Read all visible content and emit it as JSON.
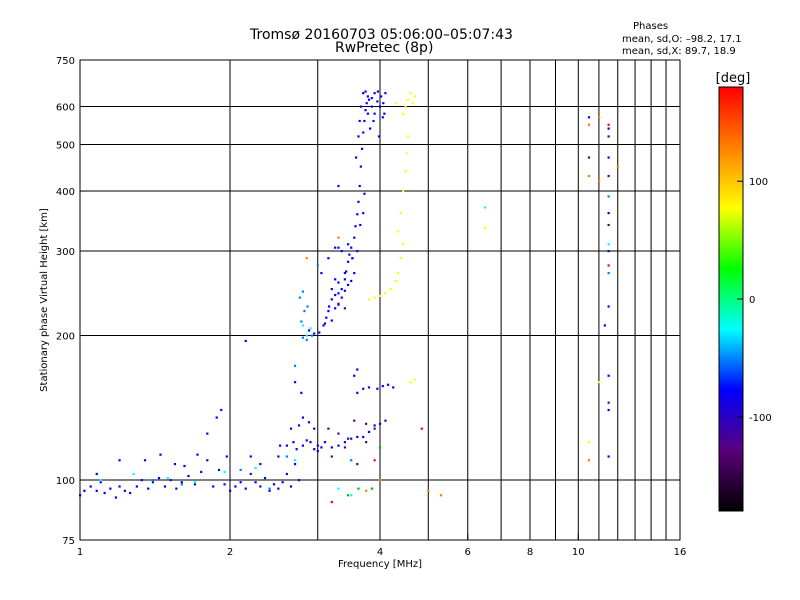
{
  "header": {
    "title_line1": "Tromsø 20160703 05:06:00–05:07:43",
    "title_line2": "RwPretec (8p)"
  },
  "stats": {
    "heading": "Phases",
    "o_line": "mean, sd,O: –98.2, 17.1",
    "x_line": "mean, sd,X:  89.7, 18.9"
  },
  "chart_data": {
    "type": "scatter",
    "title": "Tromsø 20160703 05:06:00–05:07:43",
    "subtitle": "RwPretec (8p)",
    "xlabel": "Frequency [MHz]",
    "ylabel": "Stationary phase Virtual Height [km]",
    "x_scale": "log",
    "y_scale": "log",
    "xlim": [
      1,
      16
    ],
    "ylim": [
      75,
      750
    ],
    "x_ticks": [
      1,
      2,
      4,
      6,
      8,
      10,
      16
    ],
    "x_tick_labels": [
      "1",
      "2",
      "4",
      "6",
      "8",
      "10",
      "16"
    ],
    "x_minor_ticks": [
      3,
      5,
      7,
      9,
      11,
      12,
      13,
      14,
      15
    ],
    "y_ticks": [
      75,
      100,
      200,
      300,
      400,
      500,
      600,
      750
    ],
    "y_tick_labels": [
      "75",
      "100",
      "200",
      "300",
      "400",
      "500",
      "600",
      "750"
    ],
    "grid": true,
    "colorbar": {
      "label": "[deg]",
      "range": [
        -180,
        180
      ],
      "ticks": [
        100,
        0,
        -100
      ],
      "tick_labels": [
        "100",
        "0",
        "-100"
      ],
      "colormap": "rainbow",
      "stops": [
        "#000000",
        "#5a007a",
        "#0000ff",
        "#00ffff",
        "#00ff00",
        "#ffff00",
        "#ff8000",
        "#ff0000"
      ]
    },
    "series": [
      {
        "color_phase": -100,
        "color": "#0000ff",
        "points": [
          [
            1.0,
            93
          ],
          [
            1.02,
            95
          ],
          [
            1.05,
            97
          ],
          [
            1.08,
            95
          ],
          [
            1.1,
            99
          ],
          [
            1.12,
            94
          ],
          [
            1.15,
            96
          ],
          [
            1.18,
            92
          ],
          [
            1.2,
            97
          ],
          [
            1.23,
            95
          ],
          [
            1.26,
            94
          ],
          [
            1.3,
            97
          ],
          [
            1.33,
            100
          ],
          [
            1.37,
            96
          ],
          [
            1.4,
            99
          ],
          [
            1.44,
            101
          ],
          [
            1.48,
            97
          ],
          [
            1.52,
            100
          ],
          [
            1.56,
            96
          ],
          [
            1.6,
            99
          ],
          [
            1.65,
            102
          ],
          [
            1.7,
            98
          ],
          [
            1.75,
            104
          ],
          [
            1.8,
            110
          ],
          [
            1.85,
            97
          ],
          [
            1.9,
            105
          ],
          [
            1.95,
            98
          ],
          [
            2.0,
            95
          ],
          [
            2.05,
            97
          ],
          [
            2.1,
            99
          ],
          [
            2.15,
            96
          ],
          [
            2.2,
            103
          ],
          [
            2.25,
            99
          ],
          [
            2.3,
            97
          ],
          [
            2.35,
            101
          ],
          [
            2.4,
            95
          ],
          [
            2.45,
            98
          ],
          [
            2.5,
            96
          ],
          [
            2.55,
            99
          ],
          [
            2.6,
            103
          ],
          [
            2.65,
            97
          ],
          [
            2.7,
            108
          ],
          [
            2.75,
            100
          ],
          [
            1.08,
            103
          ],
          [
            1.2,
            110
          ],
          [
            1.35,
            110
          ],
          [
            1.45,
            113
          ],
          [
            1.55,
            108
          ],
          [
            1.62,
            107
          ],
          [
            1.72,
            113
          ],
          [
            1.8,
            125
          ],
          [
            1.88,
            135
          ],
          [
            1.92,
            140
          ],
          [
            1.97,
            112
          ],
          [
            2.2,
            112
          ],
          [
            2.3,
            108
          ],
          [
            2.5,
            112
          ],
          [
            2.52,
            118
          ],
          [
            2.6,
            118
          ],
          [
            2.68,
            120
          ],
          [
            2.72,
            116
          ],
          [
            2.8,
            118
          ],
          [
            2.85,
            121
          ],
          [
            2.9,
            120
          ],
          [
            2.95,
            116
          ],
          [
            3.0,
            115
          ],
          [
            3.05,
            117
          ],
          [
            2.65,
            128
          ],
          [
            2.75,
            130
          ],
          [
            2.8,
            135
          ],
          [
            2.88,
            132
          ],
          [
            2.95,
            128
          ],
          [
            2.7,
            160
          ],
          [
            2.78,
            152
          ],
          [
            3.0,
            118
          ],
          [
            3.1,
            120
          ],
          [
            3.2,
            117
          ],
          [
            3.3,
            118
          ],
          [
            3.4,
            120
          ],
          [
            3.5,
            122
          ],
          [
            3.6,
            123
          ],
          [
            3.7,
            123
          ],
          [
            3.8,
            126
          ],
          [
            3.9,
            130
          ],
          [
            4.0,
            131
          ],
          [
            4.1,
            133
          ],
          [
            3.6,
            152
          ],
          [
            3.7,
            155
          ],
          [
            3.8,
            156
          ],
          [
            3.95,
            155
          ],
          [
            4.05,
            157
          ],
          [
            4.15,
            158
          ],
          [
            4.25,
            156
          ],
          [
            2.88,
            205
          ],
          [
            2.95,
            202
          ],
          [
            3.02,
            203
          ],
          [
            3.08,
            210
          ],
          [
            3.12,
            218
          ],
          [
            3.16,
            230
          ],
          [
            3.2,
            238
          ],
          [
            3.25,
            243
          ],
          [
            3.3,
            245
          ],
          [
            3.35,
            250
          ],
          [
            3.4,
            262
          ],
          [
            3.42,
            272
          ],
          [
            3.45,
            285
          ],
          [
            3.47,
            295
          ],
          [
            3.5,
            305
          ],
          [
            3.52,
            290
          ],
          [
            3.55,
            320
          ],
          [
            3.57,
            338
          ],
          [
            3.6,
            358
          ],
          [
            3.62,
            380
          ],
          [
            3.64,
            410
          ],
          [
            3.66,
            450
          ],
          [
            3.68,
            490
          ],
          [
            3.7,
            530
          ],
          [
            3.72,
            560
          ],
          [
            3.74,
            590
          ],
          [
            3.76,
            610
          ],
          [
            3.78,
            630
          ],
          [
            3.8,
            620
          ],
          [
            3.85,
            600
          ],
          [
            3.9,
            580
          ],
          [
            3.95,
            615
          ],
          [
            4.0,
            600
          ],
          [
            4.05,
            570
          ],
          [
            4.1,
            640
          ],
          [
            3.5,
            260
          ],
          [
            3.55,
            270
          ],
          [
            3.45,
            255
          ],
          [
            3.4,
            248
          ],
          [
            3.35,
            240
          ],
          [
            3.3,
            232
          ],
          [
            3.25,
            228
          ],
          [
            3.15,
            225
          ],
          [
            3.2,
            215
          ],
          [
            3.1,
            212
          ],
          [
            3.3,
            258
          ],
          [
            3.25,
            262
          ],
          [
            3.2,
            250
          ],
          [
            3.52,
            290
          ],
          [
            3.58,
            470
          ],
          [
            3.62,
            520
          ],
          [
            3.64,
            560
          ],
          [
            3.66,
            600
          ],
          [
            3.7,
            640
          ],
          [
            3.74,
            645
          ],
          [
            3.9,
            640
          ],
          [
            3.88,
            560
          ],
          [
            3.82,
            540
          ],
          [
            3.78,
            580
          ],
          [
            3.85,
            625
          ],
          [
            3.96,
            645
          ],
          [
            4.02,
            630
          ],
          [
            4.06,
            610
          ],
          [
            3.3,
            410
          ],
          [
            3.98,
            520
          ],
          [
            4.08,
            580
          ],
          [
            3.6,
            170
          ],
          [
            3.55,
            165
          ],
          [
            2.15,
            195
          ],
          [
            3.3,
            305
          ],
          [
            3.4,
            270
          ],
          [
            3.05,
            270
          ],
          [
            3.15,
            290
          ],
          [
            3.25,
            305
          ],
          [
            3.35,
            300
          ],
          [
            3.45,
            310
          ],
          [
            3.6,
            300
          ],
          [
            3.65,
            340
          ],
          [
            3.7,
            360
          ],
          [
            3.72,
            395
          ],
          [
            10.5,
            570
          ],
          [
            11.5,
            540
          ],
          [
            11.5,
            360
          ],
          [
            11.5,
            300
          ],
          [
            11.5,
            230
          ],
          [
            11.3,
            210
          ],
          [
            11.5,
            140
          ],
          [
            11.5,
            165
          ],
          [
            11.5,
            112
          ],
          [
            11.5,
            470
          ]
        ]
      },
      {
        "color_phase": -140,
        "color": "#5a007a",
        "points": [
          [
            3.15,
            128
          ],
          [
            3.3,
            125
          ],
          [
            3.45,
            122
          ],
          [
            3.55,
            133
          ],
          [
            3.75,
            131
          ],
          [
            3.9,
            128
          ],
          [
            3.2,
            112
          ],
          [
            3.4,
            117
          ],
          [
            3.6,
            108
          ],
          [
            3.75,
            120
          ],
          [
            3.3,
            233
          ],
          [
            3.4,
            228
          ],
          [
            11.5,
            520
          ],
          [
            11.5,
            430
          ],
          [
            11.5,
            340
          ],
          [
            11.5,
            145
          ],
          [
            10.5,
            470
          ]
        ]
      },
      {
        "color_phase": -70,
        "color": "#0080ff",
        "points": [
          [
            1.4,
            100
          ],
          [
            1.6,
            98
          ],
          [
            2.4,
            96
          ],
          [
            2.1,
            105
          ],
          [
            2.8,
            198
          ],
          [
            2.85,
            196
          ],
          [
            2.92,
            200
          ],
          [
            2.78,
            214
          ],
          [
            2.82,
            225
          ],
          [
            2.76,
            240
          ],
          [
            2.8,
            247
          ],
          [
            2.86,
            230
          ],
          [
            3.0,
            280
          ],
          [
            3.5,
            110
          ],
          [
            11.5,
            390
          ],
          [
            11.5,
            270
          ],
          [
            2.6,
            112
          ],
          [
            2.7,
            173
          ]
        ]
      },
      {
        "color_phase": -30,
        "color": "#00ffff",
        "points": [
          [
            1.1,
            100
          ],
          [
            1.28,
            103
          ],
          [
            1.5,
            101
          ],
          [
            1.7,
            99
          ],
          [
            1.95,
            104
          ],
          [
            2.25,
            106
          ],
          [
            2.7,
            110
          ],
          [
            2.85,
            200
          ],
          [
            2.9,
            207
          ],
          [
            2.8,
            210
          ],
          [
            6.5,
            370
          ],
          [
            11.5,
            310
          ],
          [
            3.3,
            96
          ],
          [
            3.5,
            93
          ]
        ]
      },
      {
        "color_phase": 20,
        "color": "#00c000",
        "points": [
          [
            3.45,
            93
          ],
          [
            3.62,
            96
          ],
          [
            4.0,
            117
          ],
          [
            3.85,
            96
          ]
        ]
      },
      {
        "color_phase": 100,
        "color": "#ffff00",
        "points": [
          [
            4.35,
            330
          ],
          [
            4.4,
            360
          ],
          [
            4.45,
            400
          ],
          [
            4.5,
            440
          ],
          [
            4.52,
            480
          ],
          [
            4.55,
            520
          ],
          [
            4.45,
            310
          ],
          [
            4.4,
            290
          ],
          [
            4.35,
            270
          ],
          [
            4.3,
            260
          ],
          [
            4.2,
            250
          ],
          [
            4.1,
            245
          ],
          [
            4.0,
            242
          ],
          [
            3.9,
            240
          ],
          [
            3.8,
            238
          ],
          [
            4.5,
            600
          ],
          [
            4.55,
            620
          ],
          [
            4.6,
            640
          ],
          [
            4.65,
            610
          ],
          [
            4.7,
            630
          ],
          [
            4.45,
            580
          ],
          [
            4.6,
            160
          ],
          [
            4.7,
            162
          ],
          [
            11.0,
            160
          ],
          [
            10.5,
            120
          ],
          [
            6.5,
            335
          ],
          [
            4.3,
            610
          ]
        ]
      },
      {
        "color_phase": 140,
        "color": "#ff8000",
        "points": [
          [
            10.5,
            550
          ],
          [
            10.5,
            430
          ],
          [
            11.0,
            420
          ],
          [
            11.0,
            570
          ],
          [
            12.0,
            450
          ],
          [
            10.5,
            110
          ],
          [
            5.0,
            95
          ],
          [
            5.3,
            93
          ],
          [
            3.3,
            320
          ],
          [
            2.85,
            290
          ],
          [
            3.75,
            95
          ],
          [
            4.0,
            100
          ]
        ]
      },
      {
        "color_phase": 175,
        "color": "#ff0000",
        "points": [
          [
            11.5,
            280
          ],
          [
            4.85,
            128
          ],
          [
            3.2,
            90
          ],
          [
            3.9,
            110
          ],
          [
            11.5,
            550
          ]
        ]
      }
    ]
  }
}
